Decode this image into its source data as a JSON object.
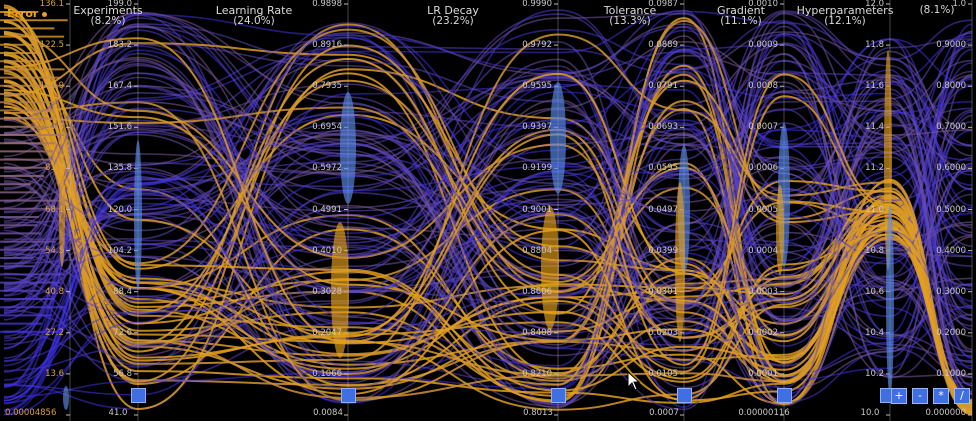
{
  "error_axis": {
    "label": "Error",
    "ticks": [
      "136.1",
      "122.5",
      "108.9",
      "95.3",
      "81.7",
      "68.1",
      "54.5",
      "40.8",
      "27.2",
      "13.6",
      "0.00004856"
    ]
  },
  "axes": [
    {
      "label": "Experiments",
      "pct": "(8.2%)",
      "ticks": [
        "199.0",
        "183.2",
        "167.4",
        "151.6",
        "135.8",
        "120.0",
        "104.2",
        "88.4",
        "72.6",
        "56.8",
        "41.0"
      ]
    },
    {
      "label": "Learning Rate",
      "pct": "(24.0%)",
      "ticks": [
        "0.9898",
        "0.8916",
        "0.7935",
        "0.6954",
        "0.5972",
        "0.4991",
        "0.4010",
        "0.3028",
        "0.2047",
        "0.1066",
        "0.0084"
      ]
    },
    {
      "label": "LR Decay",
      "pct": "(23.2%)",
      "ticks": [
        "0.9990",
        "0.9792",
        "0.9595",
        "0.9397",
        "0.9199",
        "0.9001",
        "0.8804",
        "0.8606",
        "0.8408",
        "0.8210",
        "0.8013"
      ]
    },
    {
      "label": "Tolerance",
      "pct": "(13.3%)",
      "ticks": [
        "0.0987",
        "0.0889",
        "0.0791",
        "0.0693",
        "0.0595",
        "0.0497",
        "0.0399",
        "0.0301",
        "0.0203",
        "0.0105",
        "0.0007"
      ]
    },
    {
      "label": "Gradient",
      "pct": "(11.1%)",
      "ticks": [
        "0.0010",
        "0.0009",
        "0.0008",
        "0.0007",
        "0.0006",
        "0.0005",
        "0.0004",
        "0.0003",
        "0.0002",
        "0.0001",
        "0.00000116"
      ]
    },
    {
      "label": "Hyperparameters",
      "pct": "(12.1%)",
      "ticks": [
        "12.0",
        "11.8",
        "11.6",
        "11.4",
        "11.2",
        "11.0",
        "10.8",
        "10.6",
        "10.4",
        "10.2",
        "10.0"
      ]
    },
    {
      "label": "",
      "pct": "(8.1%)",
      "ticks": [
        "1.0",
        "0.9000",
        "0.8000",
        "0.7000",
        "0.6000",
        "0.5000",
        "0.4000",
        "0.3000",
        "0.2000",
        "0.1000",
        "0.000000"
      ]
    }
  ],
  "toolbar": {
    "add": "+",
    "subtract": "-",
    "multiply": "*",
    "divide": "/"
  },
  "colors": {
    "background": "#000000",
    "low": "#3a2ee6",
    "high": "#e6a21a",
    "handle": "#3f6fe0"
  }
}
